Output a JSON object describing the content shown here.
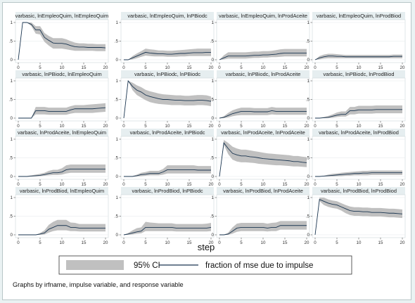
{
  "note": "Graphs by irfname, impulse variable, and response variable",
  "chart_data": {
    "type": "line",
    "xlabel": "step",
    "xlim": [
      0,
      20
    ],
    "xticks": [
      0,
      5,
      10,
      15,
      20
    ],
    "ylim": [
      0,
      1
    ],
    "yticks": [
      0,
      0.5,
      1
    ],
    "yticklabels": [
      "0",
      ".5",
      "1"
    ],
    "grid": true,
    "legend": {
      "position": "bottom",
      "band_label": "95% CI",
      "line_label": "fraction of mse due to impulse"
    },
    "colors": {
      "line": "#1a3550",
      "band": "#c0c0c0",
      "title_bar": "#e6eef0",
      "grid": "#e2e8ea"
    },
    "panels": [
      {
        "title": "varbasic, lnEmpleoQuim, lnEmpleoQuim",
        "mean": [
          0,
          1,
          1,
          0.95,
          0.8,
          0.8,
          0.6,
          0.52,
          0.45,
          0.44,
          0.44,
          0.42,
          0.38,
          0.35,
          0.34,
          0.34,
          0.33,
          0.33,
          0.33,
          0.33,
          0.32
        ],
        "lower": [
          0,
          1,
          1,
          0.9,
          0.7,
          0.68,
          0.48,
          0.38,
          0.3,
          0.3,
          0.3,
          0.28,
          0.26,
          0.24,
          0.24,
          0.24,
          0.24,
          0.24,
          0.23,
          0.23,
          0.23
        ],
        "upper": [
          0,
          1,
          1,
          1,
          0.9,
          0.9,
          0.72,
          0.64,
          0.58,
          0.58,
          0.58,
          0.55,
          0.5,
          0.46,
          0.44,
          0.44,
          0.43,
          0.43,
          0.42,
          0.42,
          0.42
        ]
      },
      {
        "title": "varbasic, lnEmpleoQuim, lnPBiodc",
        "mean": [
          0,
          0,
          0.05,
          0.1,
          0.15,
          0.2,
          0.18,
          0.17,
          0.16,
          0.16,
          0.15,
          0.15,
          0.16,
          0.17,
          0.17,
          0.18,
          0.19,
          0.19,
          0.19,
          0.2,
          0.2
        ],
        "lower": [
          0,
          0,
          0.01,
          0.04,
          0.08,
          0.11,
          0.1,
          0.09,
          0.09,
          0.09,
          0.08,
          0.08,
          0.08,
          0.09,
          0.09,
          0.1,
          0.1,
          0.1,
          0.1,
          0.1,
          0.1
        ],
        "upper": [
          0,
          0,
          0.1,
          0.17,
          0.23,
          0.3,
          0.28,
          0.27,
          0.25,
          0.25,
          0.24,
          0.24,
          0.25,
          0.26,
          0.27,
          0.28,
          0.29,
          0.3,
          0.3,
          0.3,
          0.3
        ]
      },
      {
        "title": "varbasic, lnEmpleoQuim, lnProdAceite",
        "mean": [
          0,
          0.05,
          0.1,
          0.1,
          0.1,
          0.1,
          0.1,
          0.11,
          0.12,
          0.12,
          0.13,
          0.13,
          0.14,
          0.15,
          0.17,
          0.18,
          0.18,
          0.18,
          0.18,
          0.18,
          0.18
        ],
        "lower": [
          0,
          0.01,
          0.03,
          0.03,
          0.03,
          0.03,
          0.03,
          0.04,
          0.05,
          0.05,
          0.06,
          0.06,
          0.07,
          0.07,
          0.08,
          0.09,
          0.09,
          0.09,
          0.09,
          0.09,
          0.09
        ],
        "upper": [
          0,
          0.12,
          0.2,
          0.2,
          0.2,
          0.2,
          0.2,
          0.21,
          0.22,
          0.22,
          0.23,
          0.23,
          0.24,
          0.26,
          0.28,
          0.29,
          0.29,
          0.29,
          0.29,
          0.29,
          0.29
        ]
      },
      {
        "title": "varbasic, lnEmpleoQuim, lnProdBiod",
        "mean": [
          0,
          0.05,
          0.08,
          0.1,
          0.1,
          0.09,
          0.09,
          0.08,
          0.08,
          0.08,
          0.08,
          0.08,
          0.08,
          0.08,
          0.08,
          0.08,
          0.08,
          0.08,
          0.09,
          0.09,
          0.09
        ],
        "lower": [
          0,
          0.01,
          0.03,
          0.04,
          0.04,
          0.04,
          0.04,
          0.04,
          0.04,
          0.04,
          0.04,
          0.04,
          0.04,
          0.04,
          0.04,
          0.04,
          0.04,
          0.04,
          0.04,
          0.04,
          0.04
        ],
        "upper": [
          0,
          0.1,
          0.14,
          0.16,
          0.16,
          0.15,
          0.14,
          0.13,
          0.13,
          0.13,
          0.13,
          0.13,
          0.13,
          0.13,
          0.13,
          0.13,
          0.13,
          0.13,
          0.14,
          0.14,
          0.14
        ]
      },
      {
        "title": "varbasic, lnPBiodc, lnEmpleoQuim",
        "mean": [
          0,
          0,
          0,
          0,
          0.2,
          0.2,
          0.2,
          0.18,
          0.18,
          0.18,
          0.18,
          0.18,
          0.22,
          0.25,
          0.25,
          0.25,
          0.25,
          0.25,
          0.26,
          0.27,
          0.28
        ],
        "lower": [
          0,
          0,
          0,
          0,
          0.1,
          0.1,
          0.1,
          0.09,
          0.09,
          0.09,
          0.09,
          0.09,
          0.12,
          0.14,
          0.14,
          0.14,
          0.14,
          0.14,
          0.15,
          0.16,
          0.17
        ],
        "upper": [
          0,
          0,
          0,
          0,
          0.3,
          0.3,
          0.3,
          0.28,
          0.28,
          0.28,
          0.28,
          0.28,
          0.32,
          0.35,
          0.35,
          0.35,
          0.36,
          0.37,
          0.38,
          0.39,
          0.4
        ]
      },
      {
        "title": "varbasic, lnPBiodc, lnPBiodc",
        "mean": [
          0,
          1,
          0.85,
          0.75,
          0.7,
          0.62,
          0.58,
          0.55,
          0.52,
          0.5,
          0.5,
          0.49,
          0.48,
          0.48,
          0.47,
          0.47,
          0.47,
          0.48,
          0.48,
          0.47,
          0.45
        ],
        "lower": [
          0,
          1,
          0.75,
          0.62,
          0.55,
          0.48,
          0.43,
          0.4,
          0.38,
          0.37,
          0.36,
          0.35,
          0.35,
          0.35,
          0.34,
          0.34,
          0.34,
          0.35,
          0.35,
          0.34,
          0.32
        ],
        "upper": [
          0,
          1,
          0.95,
          0.88,
          0.83,
          0.76,
          0.72,
          0.69,
          0.66,
          0.64,
          0.63,
          0.62,
          0.61,
          0.61,
          0.6,
          0.6,
          0.61,
          0.62,
          0.62,
          0.61,
          0.58
        ]
      },
      {
        "title": "varbasic, lnPBiodc, lnProdAceite",
        "mean": [
          0,
          0.02,
          0.07,
          0.12,
          0.15,
          0.18,
          0.18,
          0.18,
          0.17,
          0.17,
          0.17,
          0.17,
          0.2,
          0.18,
          0.18,
          0.18,
          0.18,
          0.18,
          0.18,
          0.18,
          0.18
        ],
        "lower": [
          0,
          0,
          0.02,
          0.05,
          0.07,
          0.08,
          0.08,
          0.08,
          0.08,
          0.08,
          0.08,
          0.08,
          0.1,
          0.09,
          0.09,
          0.09,
          0.09,
          0.09,
          0.09,
          0.09,
          0.09
        ],
        "upper": [
          0,
          0.05,
          0.14,
          0.21,
          0.25,
          0.28,
          0.28,
          0.28,
          0.27,
          0.27,
          0.27,
          0.27,
          0.3,
          0.28,
          0.28,
          0.28,
          0.28,
          0.28,
          0.28,
          0.28,
          0.28
        ]
      },
      {
        "title": "varbasic, lnPBiodc, lnProdBiod",
        "mean": [
          0,
          0,
          0.01,
          0.02,
          0.05,
          0.08,
          0.1,
          0.1,
          0.2,
          0.2,
          0.22,
          0.22,
          0.22,
          0.22,
          0.23,
          0.23,
          0.23,
          0.23,
          0.23,
          0.23,
          0.23
        ],
        "lower": [
          0,
          0,
          0,
          0,
          0.01,
          0.03,
          0.04,
          0.04,
          0.1,
          0.1,
          0.12,
          0.12,
          0.12,
          0.12,
          0.13,
          0.13,
          0.13,
          0.13,
          0.13,
          0.13,
          0.13
        ],
        "upper": [
          0,
          0,
          0.03,
          0.06,
          0.1,
          0.15,
          0.18,
          0.18,
          0.3,
          0.3,
          0.33,
          0.33,
          0.33,
          0.33,
          0.34,
          0.34,
          0.34,
          0.34,
          0.34,
          0.34,
          0.34
        ]
      },
      {
        "title": "varbasic, lnProdAceite, lnEmpleoQuim",
        "mean": [
          0,
          0,
          0,
          0.01,
          0.02,
          0.03,
          0.05,
          0.08,
          0.1,
          0.1,
          0.12,
          0.18,
          0.2,
          0.2,
          0.2,
          0.2,
          0.2,
          0.2,
          0.2,
          0.2,
          0.2
        ],
        "lower": [
          0,
          0,
          0,
          0,
          0,
          0.01,
          0.02,
          0.03,
          0.04,
          0.04,
          0.05,
          0.08,
          0.1,
          0.1,
          0.1,
          0.1,
          0.1,
          0.1,
          0.1,
          0.1,
          0.1
        ],
        "upper": [
          0,
          0,
          0.01,
          0.03,
          0.05,
          0.07,
          0.1,
          0.15,
          0.18,
          0.18,
          0.22,
          0.3,
          0.32,
          0.32,
          0.32,
          0.32,
          0.32,
          0.32,
          0.32,
          0.32,
          0.32
        ]
      },
      {
        "title": "varbasic, lnProdAceite, lnPBiodc",
        "mean": [
          0,
          0,
          0,
          0.02,
          0.05,
          0.06,
          0.08,
          0.08,
          0.08,
          0.12,
          0.18,
          0.18,
          0.18,
          0.18,
          0.18,
          0.18,
          0.18,
          0.17,
          0.17,
          0.17,
          0.17
        ],
        "lower": [
          0,
          0,
          0,
          0,
          0.01,
          0.02,
          0.03,
          0.03,
          0.03,
          0.05,
          0.08,
          0.08,
          0.08,
          0.08,
          0.08,
          0.08,
          0.08,
          0.08,
          0.08,
          0.08,
          0.08
        ],
        "upper": [
          0,
          0,
          0.01,
          0.05,
          0.1,
          0.12,
          0.15,
          0.15,
          0.15,
          0.2,
          0.3,
          0.3,
          0.3,
          0.3,
          0.3,
          0.3,
          0.3,
          0.28,
          0.28,
          0.28,
          0.28
        ]
      },
      {
        "title": "varbasic, lnProdAceite, lnProdAceite",
        "mean": [
          0,
          0.9,
          0.75,
          0.62,
          0.58,
          0.55,
          0.55,
          0.53,
          0.52,
          0.5,
          0.48,
          0.47,
          0.46,
          0.45,
          0.44,
          0.43,
          0.42,
          0.4,
          0.4,
          0.38,
          0.37
        ],
        "lower": [
          0,
          0.85,
          0.6,
          0.45,
          0.4,
          0.38,
          0.38,
          0.37,
          0.36,
          0.34,
          0.33,
          0.32,
          0.31,
          0.3,
          0.3,
          0.29,
          0.28,
          0.27,
          0.27,
          0.26,
          0.25
        ],
        "upper": [
          0,
          0.98,
          0.9,
          0.8,
          0.75,
          0.72,
          0.72,
          0.7,
          0.68,
          0.66,
          0.64,
          0.62,
          0.61,
          0.6,
          0.59,
          0.58,
          0.57,
          0.55,
          0.55,
          0.53,
          0.52
        ]
      },
      {
        "title": "varbasic, lnProdAceite, lnProdBiod",
        "mean": [
          0,
          0,
          0.01,
          0.02,
          0.03,
          0.04,
          0.05,
          0.06,
          0.07,
          0.08,
          0.08,
          0.09,
          0.09,
          0.1,
          0.1,
          0.1,
          0.1,
          0.1,
          0.1,
          0.1,
          0.1
        ],
        "lower": [
          0,
          0,
          0,
          0,
          0,
          0.01,
          0.01,
          0.02,
          0.02,
          0.03,
          0.03,
          0.03,
          0.03,
          0.04,
          0.04,
          0.04,
          0.04,
          0.04,
          0.04,
          0.04,
          0.04
        ],
        "upper": [
          0,
          0,
          0.02,
          0.05,
          0.07,
          0.08,
          0.1,
          0.11,
          0.12,
          0.13,
          0.14,
          0.15,
          0.15,
          0.16,
          0.16,
          0.16,
          0.16,
          0.16,
          0.16,
          0.16,
          0.16
        ]
      },
      {
        "title": "varbasic, lnProdBiod, lnEmpleoQuim",
        "mean": [
          0,
          0,
          0,
          0,
          0,
          0.02,
          0.05,
          0.15,
          0.2,
          0.25,
          0.25,
          0.25,
          0.2,
          0.2,
          0.18,
          0.18,
          0.18,
          0.18,
          0.18,
          0.18,
          0.18
        ],
        "lower": [
          0,
          0,
          0,
          0,
          0,
          0,
          0.01,
          0.06,
          0.1,
          0.12,
          0.12,
          0.12,
          0.1,
          0.1,
          0.09,
          0.09,
          0.09,
          0.09,
          0.09,
          0.09,
          0.09
        ],
        "upper": [
          0,
          0,
          0,
          0,
          0,
          0.05,
          0.12,
          0.27,
          0.35,
          0.4,
          0.4,
          0.4,
          0.33,
          0.32,
          0.29,
          0.29,
          0.29,
          0.29,
          0.29,
          0.29,
          0.29
        ]
      },
      {
        "title": "varbasic, lnProdBiod, lnPBiodc",
        "mean": [
          0,
          0.02,
          0.05,
          0.08,
          0.1,
          0.2,
          0.2,
          0.2,
          0.2,
          0.2,
          0.2,
          0.2,
          0.18,
          0.18,
          0.18,
          0.18,
          0.18,
          0.18,
          0.18,
          0.18,
          0.2
        ],
        "lower": [
          0,
          0,
          0.01,
          0.03,
          0.04,
          0.1,
          0.1,
          0.1,
          0.1,
          0.1,
          0.1,
          0.1,
          0.09,
          0.09,
          0.09,
          0.09,
          0.09,
          0.09,
          0.09,
          0.09,
          0.1
        ],
        "upper": [
          0,
          0.05,
          0.12,
          0.18,
          0.2,
          0.35,
          0.33,
          0.32,
          0.31,
          0.31,
          0.31,
          0.31,
          0.29,
          0.29,
          0.29,
          0.29,
          0.29,
          0.29,
          0.29,
          0.3,
          0.32
        ]
      },
      {
        "title": "varbasic, lnProdBiod, lnProdAceite",
        "mean": [
          0,
          0,
          0.02,
          0.1,
          0.18,
          0.2,
          0.2,
          0.2,
          0.2,
          0.2,
          0.2,
          0.18,
          0.2,
          0.2,
          0.25,
          0.25,
          0.25,
          0.25,
          0.25,
          0.25,
          0.25
        ],
        "lower": [
          0,
          0,
          0,
          0.03,
          0.08,
          0.1,
          0.1,
          0.1,
          0.1,
          0.1,
          0.1,
          0.09,
          0.1,
          0.1,
          0.14,
          0.14,
          0.14,
          0.14,
          0.14,
          0.14,
          0.14
        ],
        "upper": [
          0,
          0,
          0.06,
          0.2,
          0.3,
          0.32,
          0.32,
          0.32,
          0.32,
          0.32,
          0.32,
          0.3,
          0.32,
          0.33,
          0.37,
          0.37,
          0.37,
          0.37,
          0.37,
          0.37,
          0.37
        ]
      },
      {
        "title": "varbasic, lnProdBiod, lnProdBiod",
        "mean": [
          0,
          0.95,
          0.9,
          0.85,
          0.82,
          0.8,
          0.75,
          0.7,
          0.65,
          0.63,
          0.63,
          0.62,
          0.62,
          0.6,
          0.6,
          0.6,
          0.59,
          0.58,
          0.58,
          0.57,
          0.56
        ],
        "lower": [
          0,
          0.9,
          0.8,
          0.75,
          0.72,
          0.7,
          0.65,
          0.58,
          0.53,
          0.51,
          0.51,
          0.5,
          0.5,
          0.49,
          0.49,
          0.49,
          0.48,
          0.47,
          0.47,
          0.46,
          0.45
        ],
        "upper": [
          0,
          1,
          1,
          0.95,
          0.92,
          0.9,
          0.85,
          0.8,
          0.76,
          0.74,
          0.74,
          0.73,
          0.73,
          0.72,
          0.72,
          0.72,
          0.71,
          0.7,
          0.7,
          0.69,
          0.68
        ]
      }
    ]
  }
}
